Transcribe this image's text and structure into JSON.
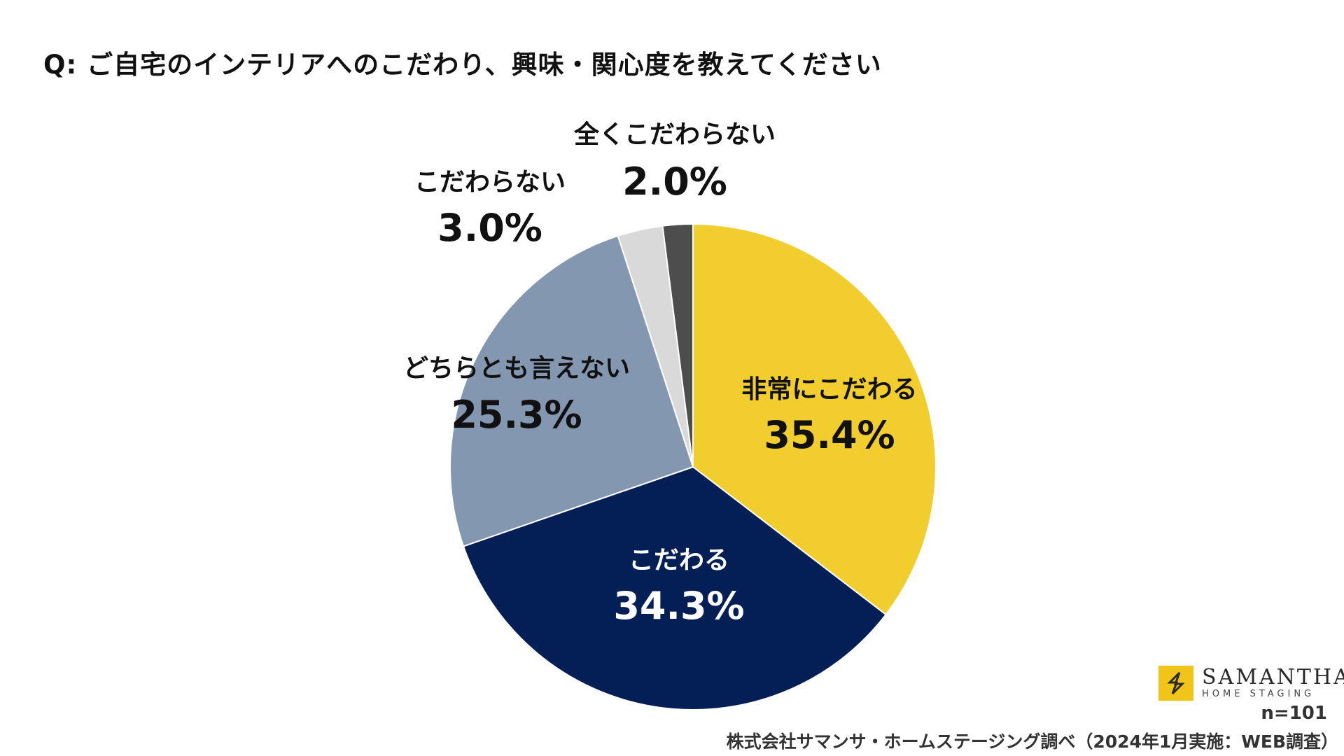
{
  "title": "Q: ご自宅のインテリアへのこだわり、興味・関心度を教えてください",
  "chart_data": {
    "type": "pie",
    "slices": [
      {
        "label": "非常にこだわる",
        "value": 35.4,
        "value_label": "35.4%",
        "color": "#F2CD2E",
        "label_color": "#111111"
      },
      {
        "label": "こだわる",
        "value": 34.3,
        "value_label": "34.3%",
        "color": "#041F55",
        "label_color": "#FFFFFF"
      },
      {
        "label": "どちらとも言えない",
        "value": 25.3,
        "value_label": "25.3%",
        "color": "#8497B0",
        "label_color": "#111111"
      },
      {
        "label": "こだわらない",
        "value": 3.0,
        "value_label": "3.0%",
        "color": "#D9D9D9",
        "label_color": "#111111"
      },
      {
        "label": "全くこだわらない",
        "value": 2.0,
        "value_label": "2.0%",
        "color": "#4D4D4D",
        "label_color": "#111111"
      }
    ],
    "start": "12 o'clock",
    "direction": "clockwise"
  },
  "logo": {
    "name": "SAMANTHA",
    "subtitle": "HOME STAGING",
    "accent": "#F0C419"
  },
  "footer": {
    "sample_size": "n=101",
    "source": "株式会社サマンサ・ホームステージング調べ（2024年1月実施：WEB調査）"
  }
}
